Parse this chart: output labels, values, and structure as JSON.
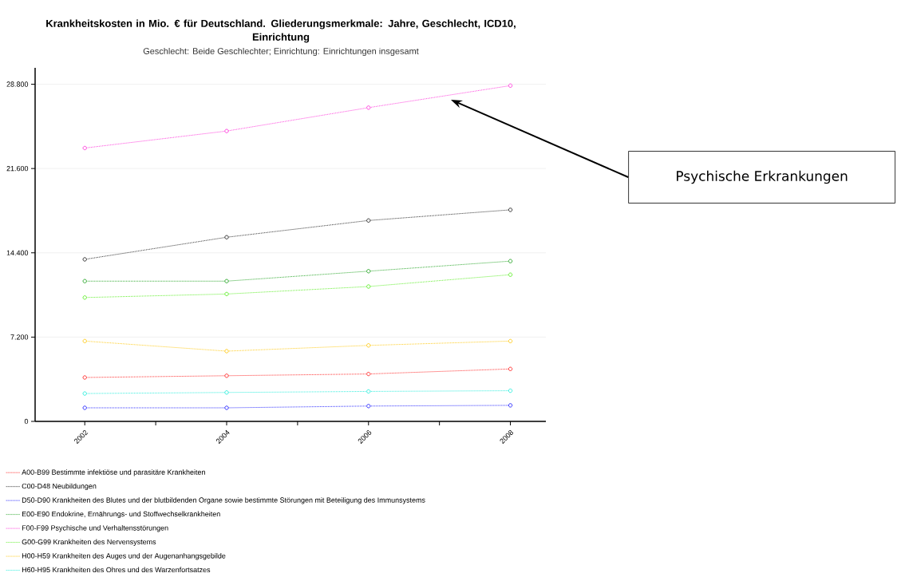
{
  "chart_data": {
    "type": "line",
    "title": "Krankheitskosten in Mio. € für Deutschland. Gliederungsmerkmale: Jahre, Geschlecht, ICD10, Einrichtung",
    "subtitle": "Geschlecht: Beide Geschlechter; Einrichtung: Einrichtungen insgesamt",
    "x": [
      2002,
      2004,
      2006,
      2008
    ],
    "xlim": [
      2001.3,
      2008.5
    ],
    "xticks": [
      2002,
      {
        "value": 2003,
        "label": null
      },
      2004,
      {
        "value": 2005,
        "label": null
      },
      2006,
      {
        "value": 2007,
        "label": null
      },
      2008
    ],
    "ylim": [
      0,
      30200
    ],
    "yticks": [
      0,
      {
        "value": 7200,
        "label": "7.200"
      },
      {
        "value": 14400,
        "label": "14.400"
      },
      {
        "value": 21600,
        "label": "21.600"
      },
      {
        "value": 28800,
        "label": "28.800"
      }
    ],
    "grid": "y",
    "legend": "bottom",
    "marker": "circle",
    "line_style": "dotted",
    "series": [
      {
        "name": "A00-B99 Bestimmte infektiöse und parasitäre Krankheiten",
        "color": "#ff3333",
        "values": [
          3750,
          3900,
          4050,
          4480
        ]
      },
      {
        "name": "C00-D48 Neubildungen",
        "color": "#333333",
        "values": [
          13840,
          15730,
          17160,
          18070
        ]
      },
      {
        "name": "D50-D90 Krankheiten des Blutes und der blutbildenden Organe sowie bestimmte Störungen mit Beteiligung des Immunsystems",
        "color": "#3333ff",
        "values": [
          1160,
          1160,
          1310,
          1370
        ]
      },
      {
        "name": "E00-E90 Endokrine, Ernährungs- und Stoffwechselkrankheiten",
        "color": "#33aa33",
        "values": [
          11980,
          11980,
          12830,
          13690
        ]
      },
      {
        "name": "F00-F99 Psychische und Verhaltensstörungen",
        "color": "#ff44dd",
        "values": [
          23350,
          24800,
          26800,
          28680
        ]
      },
      {
        "name": "G00-G99 Krankheiten des Nervensystems",
        "color": "#66ee33",
        "values": [
          10580,
          10880,
          11520,
          12530
        ]
      },
      {
        "name": "H00-H59 Krankheiten des Auges und der Augenanhangsgebilde",
        "color": "#ffcc22",
        "values": [
          6860,
          6000,
          6490,
          6860
        ]
      },
      {
        "name": "H60-H95 Krankheiten des Ohres und des Warzenfortsatzes",
        "color": "#33eedd",
        "values": [
          2380,
          2470,
          2560,
          2620
        ]
      }
    ],
    "annotations": [
      "Psychische Erkrankungen"
    ]
  }
}
